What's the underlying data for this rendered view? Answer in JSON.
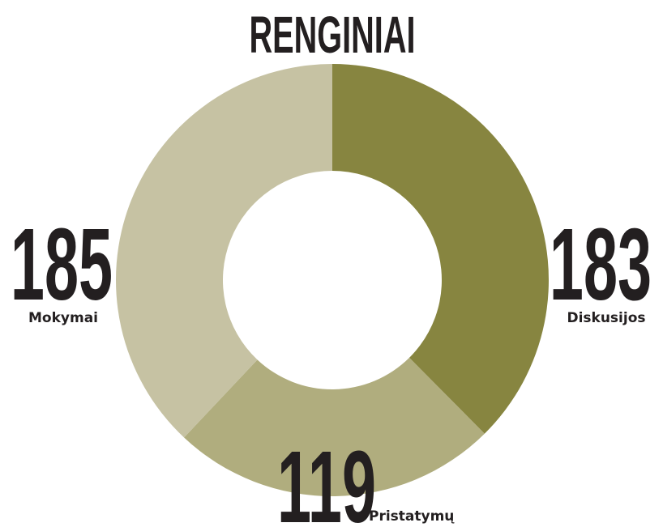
{
  "chart_data": {
    "type": "donut",
    "title": "RENGINIAI",
    "categories": [
      "Diskusijos",
      "Pristatymų",
      "Mokymai"
    ],
    "values": [
      183,
      119,
      185
    ],
    "colors": [
      "#878540",
      "#b0ad7e",
      "#c6c2a3"
    ]
  }
}
